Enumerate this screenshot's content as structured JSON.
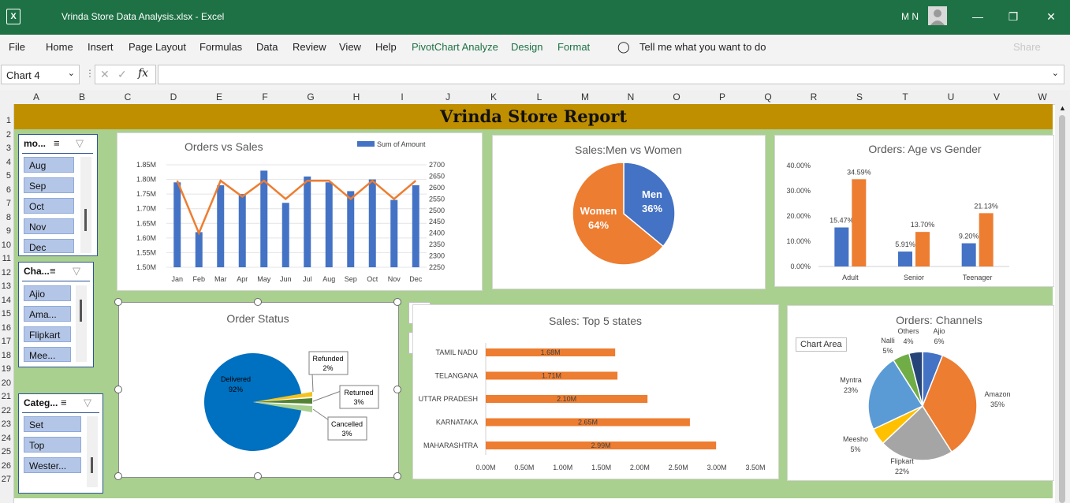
{
  "titlebar": {
    "title": "Vrinda Store Data Analysis.xlsx  -  Excel",
    "user": "M N",
    "share": "Share"
  },
  "menu": [
    "File",
    "Home",
    "Insert",
    "Page Layout",
    "Formulas",
    "Data",
    "Review",
    "View",
    "Help",
    "PivotChart Analyze",
    "Design",
    "Format"
  ],
  "tell_me": "Tell me what you want to do",
  "namebox": "Chart 4",
  "fx": "fx",
  "columns": [
    "A",
    "B",
    "C",
    "D",
    "E",
    "F",
    "G",
    "H",
    "I",
    "J",
    "K",
    "L",
    "M",
    "N",
    "O",
    "P",
    "Q",
    "R",
    "S",
    "T",
    "U",
    "V",
    "W"
  ],
  "rows": [
    "1",
    "2",
    "3",
    "4",
    "5",
    "6",
    "7",
    "8",
    "9",
    "10",
    "11",
    "12",
    "13",
    "14",
    "15",
    "16",
    "17",
    "18",
    "19",
    "20",
    "21",
    "22",
    "23",
    "24",
    "25",
    "26",
    "27"
  ],
  "report_title": "Vrinda Store Report",
  "slicers": {
    "month": {
      "title": "mo...",
      "items": [
        "Aug",
        "Sep",
        "Oct",
        "Nov",
        "Dec"
      ]
    },
    "channel": {
      "title": "Cha...",
      "items": [
        "Ajio",
        "Ama...",
        "Flipkart",
        "Mee..."
      ]
    },
    "category": {
      "title": "Categ...",
      "items": [
        "Set",
        "Top",
        "Wester..."
      ]
    }
  },
  "chart_area_tooltip": "Chart Area",
  "colors": {
    "excel_green": "#1e7145",
    "blue": "#4472c4",
    "orange": "#ed7d31",
    "banner": "#bf8f00",
    "sheet_bg": "#a9d08e"
  },
  "chart_data": [
    {
      "id": "orders-vs-sales",
      "type": "bar",
      "title": "Orders vs Sales",
      "categories": [
        "Jan",
        "Feb",
        "Mar",
        "Apr",
        "May",
        "Jun",
        "Jul",
        "Aug",
        "Sep",
        "Oct",
        "Nov",
        "Dec"
      ],
      "series": [
        {
          "name": "Sum of Amount",
          "type": "bar",
          "axis": "left",
          "values": [
            1.79,
            1.62,
            1.78,
            1.75,
            1.83,
            1.72,
            1.81,
            1.79,
            1.76,
            1.8,
            1.73,
            1.78
          ]
        },
        {
          "type": "line",
          "axis": "right",
          "values": [
            2630,
            2400,
            2630,
            2560,
            2630,
            2550,
            2630,
            2630,
            2550,
            2630,
            2550,
            2630
          ]
        }
      ],
      "ylim_left": [
        1.5,
        1.85
      ],
      "yticks_left": [
        "1.50M",
        "1.55M",
        "1.60M",
        "1.65M",
        "1.70M",
        "1.75M",
        "1.80M",
        "1.85M"
      ],
      "ylim_right": [
        2250,
        2700
      ],
      "yticks_right": [
        "2250",
        "2300",
        "2350",
        "2400",
        "2450",
        "2500",
        "2550",
        "2600",
        "2650",
        "2700"
      ],
      "legend": "top-right"
    },
    {
      "id": "sales-men-women",
      "type": "pie",
      "title": "Sales:Men vs Women",
      "labels": [
        "Men",
        "Women"
      ],
      "values": [
        36,
        64
      ],
      "data_labels": [
        "36%",
        "64%"
      ]
    },
    {
      "id": "orders-age-gender",
      "type": "bar",
      "title": "Orders: Age vs Gender",
      "categories": [
        "Adult",
        "Senior",
        "Teenager"
      ],
      "series": [
        {
          "values": [
            15.47,
            5.91,
            9.2
          ]
        },
        {
          "values": [
            34.59,
            13.7,
            21.13
          ]
        }
      ],
      "data_labels": [
        [
          "15.47%",
          "5.91%",
          "9.20%"
        ],
        [
          "34.59%",
          "13.70%",
          "21.13%"
        ]
      ],
      "ylim": [
        0,
        40
      ],
      "yticks": [
        "0.00%",
        "10.00%",
        "20.00%",
        "30.00%",
        "40.00%"
      ]
    },
    {
      "id": "order-status",
      "type": "pie",
      "title": "Order Status",
      "labels": [
        "Delivered",
        "Refunded",
        "Returned",
        "Cancelled"
      ],
      "values": [
        92,
        2,
        3,
        3
      ],
      "data_labels": [
        "92%",
        "2%",
        "3%",
        "3%"
      ]
    },
    {
      "id": "sales-top-states",
      "type": "bar",
      "orientation": "horizontal",
      "title": "Sales: Top 5 states",
      "categories": [
        "TAMIL NADU",
        "TELANGANA",
        "UTTAR PRADESH",
        "KARNATAKA",
        "MAHARASHTRA"
      ],
      "values": [
        1.68,
        1.71,
        2.1,
        2.65,
        2.99
      ],
      "data_labels": [
        "1.68M",
        "1.71M",
        "2.10M",
        "2.65M",
        "2.99M"
      ],
      "xlim": [
        0,
        3.5
      ],
      "xticks": [
        "0.00M",
        "0.50M",
        "1.00M",
        "1.50M",
        "2.00M",
        "2.50M",
        "3.00M",
        "3.50M"
      ]
    },
    {
      "id": "orders-channels",
      "type": "pie",
      "title": "Orders: Channels",
      "labels": [
        "Ajio",
        "Amazon",
        "Flipkart",
        "Meesho",
        "Myntra",
        "Nalli",
        "Others"
      ],
      "values": [
        6,
        35,
        22,
        5,
        23,
        5,
        4
      ],
      "data_labels": [
        "6%",
        "35%",
        "22%",
        "5%",
        "23%",
        "5%",
        "4%"
      ]
    }
  ]
}
